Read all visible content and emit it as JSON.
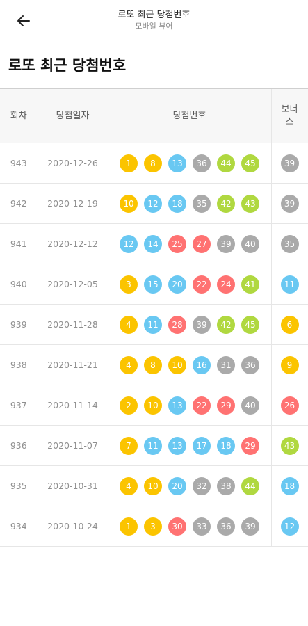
{
  "header": {
    "title": "로또 최근 당첨번호",
    "subtitle": "모바일 뷰어",
    "back_icon": "arrow-left-icon"
  },
  "page_title": "로또 최근 당첨번호",
  "table": {
    "columns": [
      "회차",
      "당첨일자",
      "당첨번호",
      "보너\n스"
    ],
    "rows": [
      {
        "round": "943",
        "date": "2020-12-26",
        "numbers": [
          1,
          8,
          13,
          36,
          44,
          45
        ],
        "bonus": 39
      },
      {
        "round": "942",
        "date": "2020-12-19",
        "numbers": [
          10,
          12,
          18,
          35,
          42,
          43
        ],
        "bonus": 39
      },
      {
        "round": "941",
        "date": "2020-12-12",
        "numbers": [
          12,
          14,
          25,
          27,
          39,
          40
        ],
        "bonus": 35
      },
      {
        "round": "940",
        "date": "2020-12-05",
        "numbers": [
          3,
          15,
          20,
          22,
          24,
          41
        ],
        "bonus": 11
      },
      {
        "round": "939",
        "date": "2020-11-28",
        "numbers": [
          4,
          11,
          28,
          39,
          42,
          45
        ],
        "bonus": 6
      },
      {
        "round": "938",
        "date": "2020-11-21",
        "numbers": [
          4,
          8,
          10,
          16,
          31,
          36
        ],
        "bonus": 9
      },
      {
        "round": "937",
        "date": "2020-11-14",
        "numbers": [
          2,
          10,
          13,
          22,
          29,
          40
        ],
        "bonus": 26
      },
      {
        "round": "936",
        "date": "2020-11-07",
        "numbers": [
          7,
          11,
          13,
          17,
          18,
          29
        ],
        "bonus": 43
      },
      {
        "round": "935",
        "date": "2020-10-31",
        "numbers": [
          4,
          10,
          20,
          32,
          38,
          44
        ],
        "bonus": 18
      },
      {
        "round": "934",
        "date": "2020-10-24",
        "numbers": [
          1,
          3,
          30,
          33,
          36,
          39
        ],
        "bonus": 12
      }
    ]
  },
  "colors": {
    "range_1_10": "#fbc400",
    "range_11_20": "#69c8f2",
    "range_21_30": "#ff7272",
    "range_31_40": "#aaaaaa",
    "range_41_45": "#b0d840"
  }
}
